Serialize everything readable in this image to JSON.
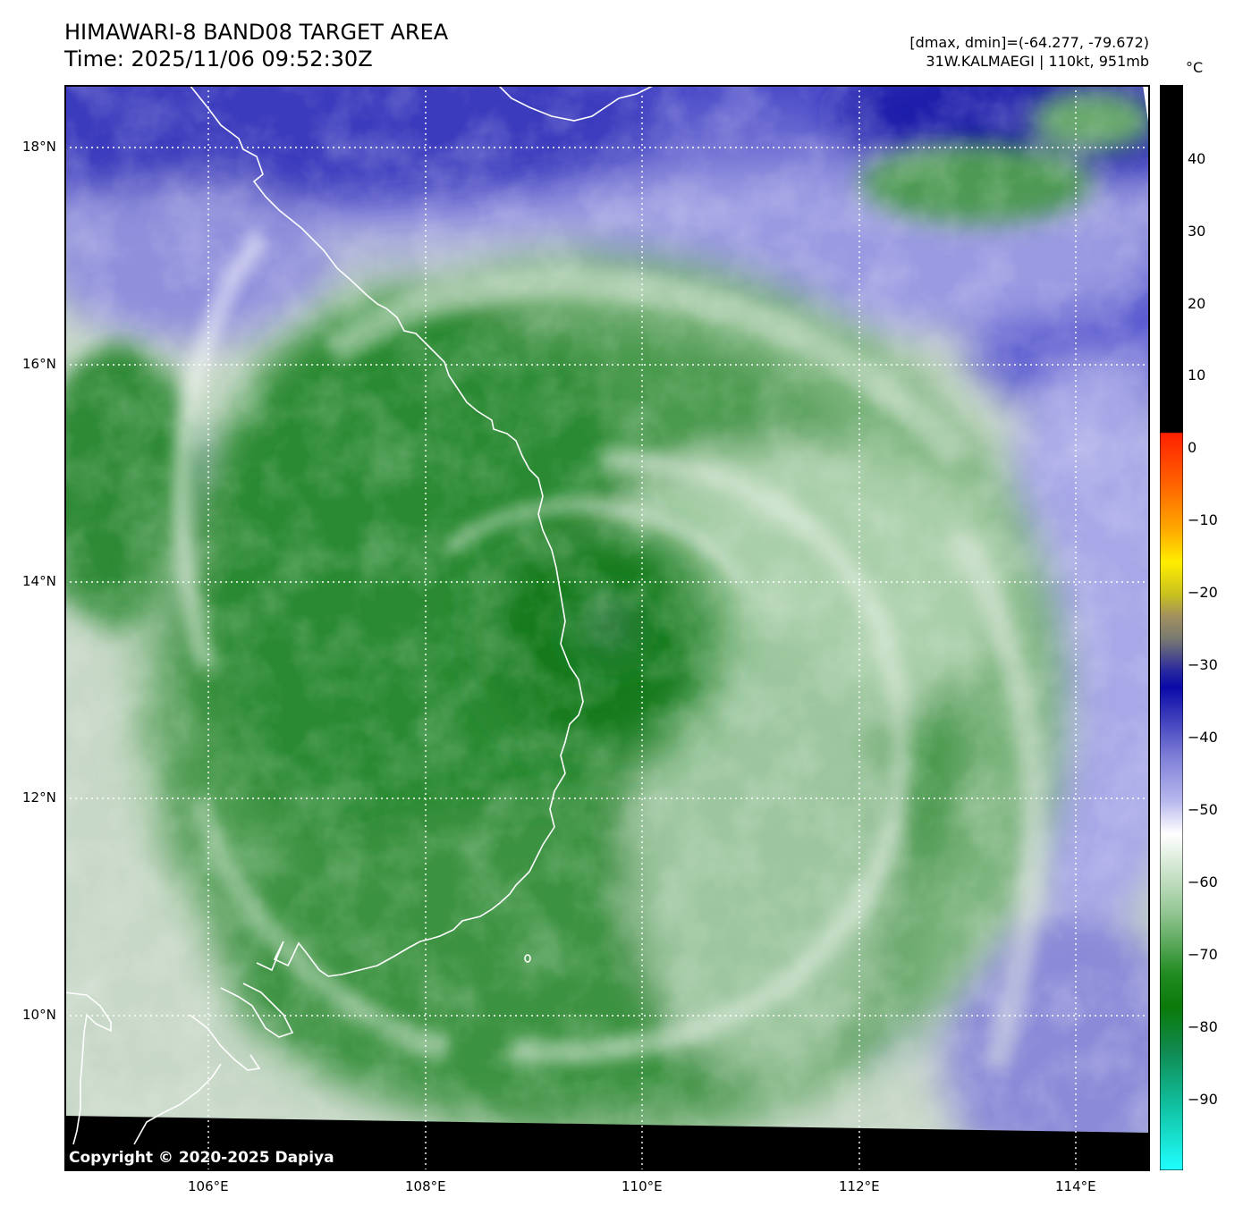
{
  "header": {
    "title_line1": "HIMAWARI-8 BAND08 TARGET AREA",
    "title_line2": "Time: 2025/11/06 09:52:30Z",
    "dminmax": "[dmax, dmin]=(-64.277, -79.672)",
    "storm": "31W.KALMAEGI | 110kt, 951mb"
  },
  "map": {
    "copyright": "Copyright © 2020-2025 Dapiya",
    "lat_labels": [
      "18°N",
      "16°N",
      "14°N",
      "12°N",
      "10°N"
    ],
    "lon_labels": [
      "106°E",
      "108°E",
      "110°E",
      "112°E",
      "114°E"
    ],
    "storm_center": {
      "lat": 13.6,
      "lon": 109.6
    }
  },
  "colorbar": {
    "unit": "°C",
    "labels": [
      "40",
      "30",
      "20",
      "10",
      "0",
      "−10",
      "−20",
      "−30",
      "−40",
      "−50",
      "−60",
      "−70",
      "−80",
      "−90"
    ],
    "colors": {
      "warm": "#000000",
      "red": "#ff2000",
      "orange": "#ff9900",
      "yellow": "#ffee00",
      "gray": "#7a7a70",
      "navy": "#0a0aa8",
      "lavender": "#b0b0ee",
      "white": "#ffffff",
      "green": "#0a7a0a",
      "teal": "#10b090",
      "cyan": "#20ffff"
    }
  }
}
